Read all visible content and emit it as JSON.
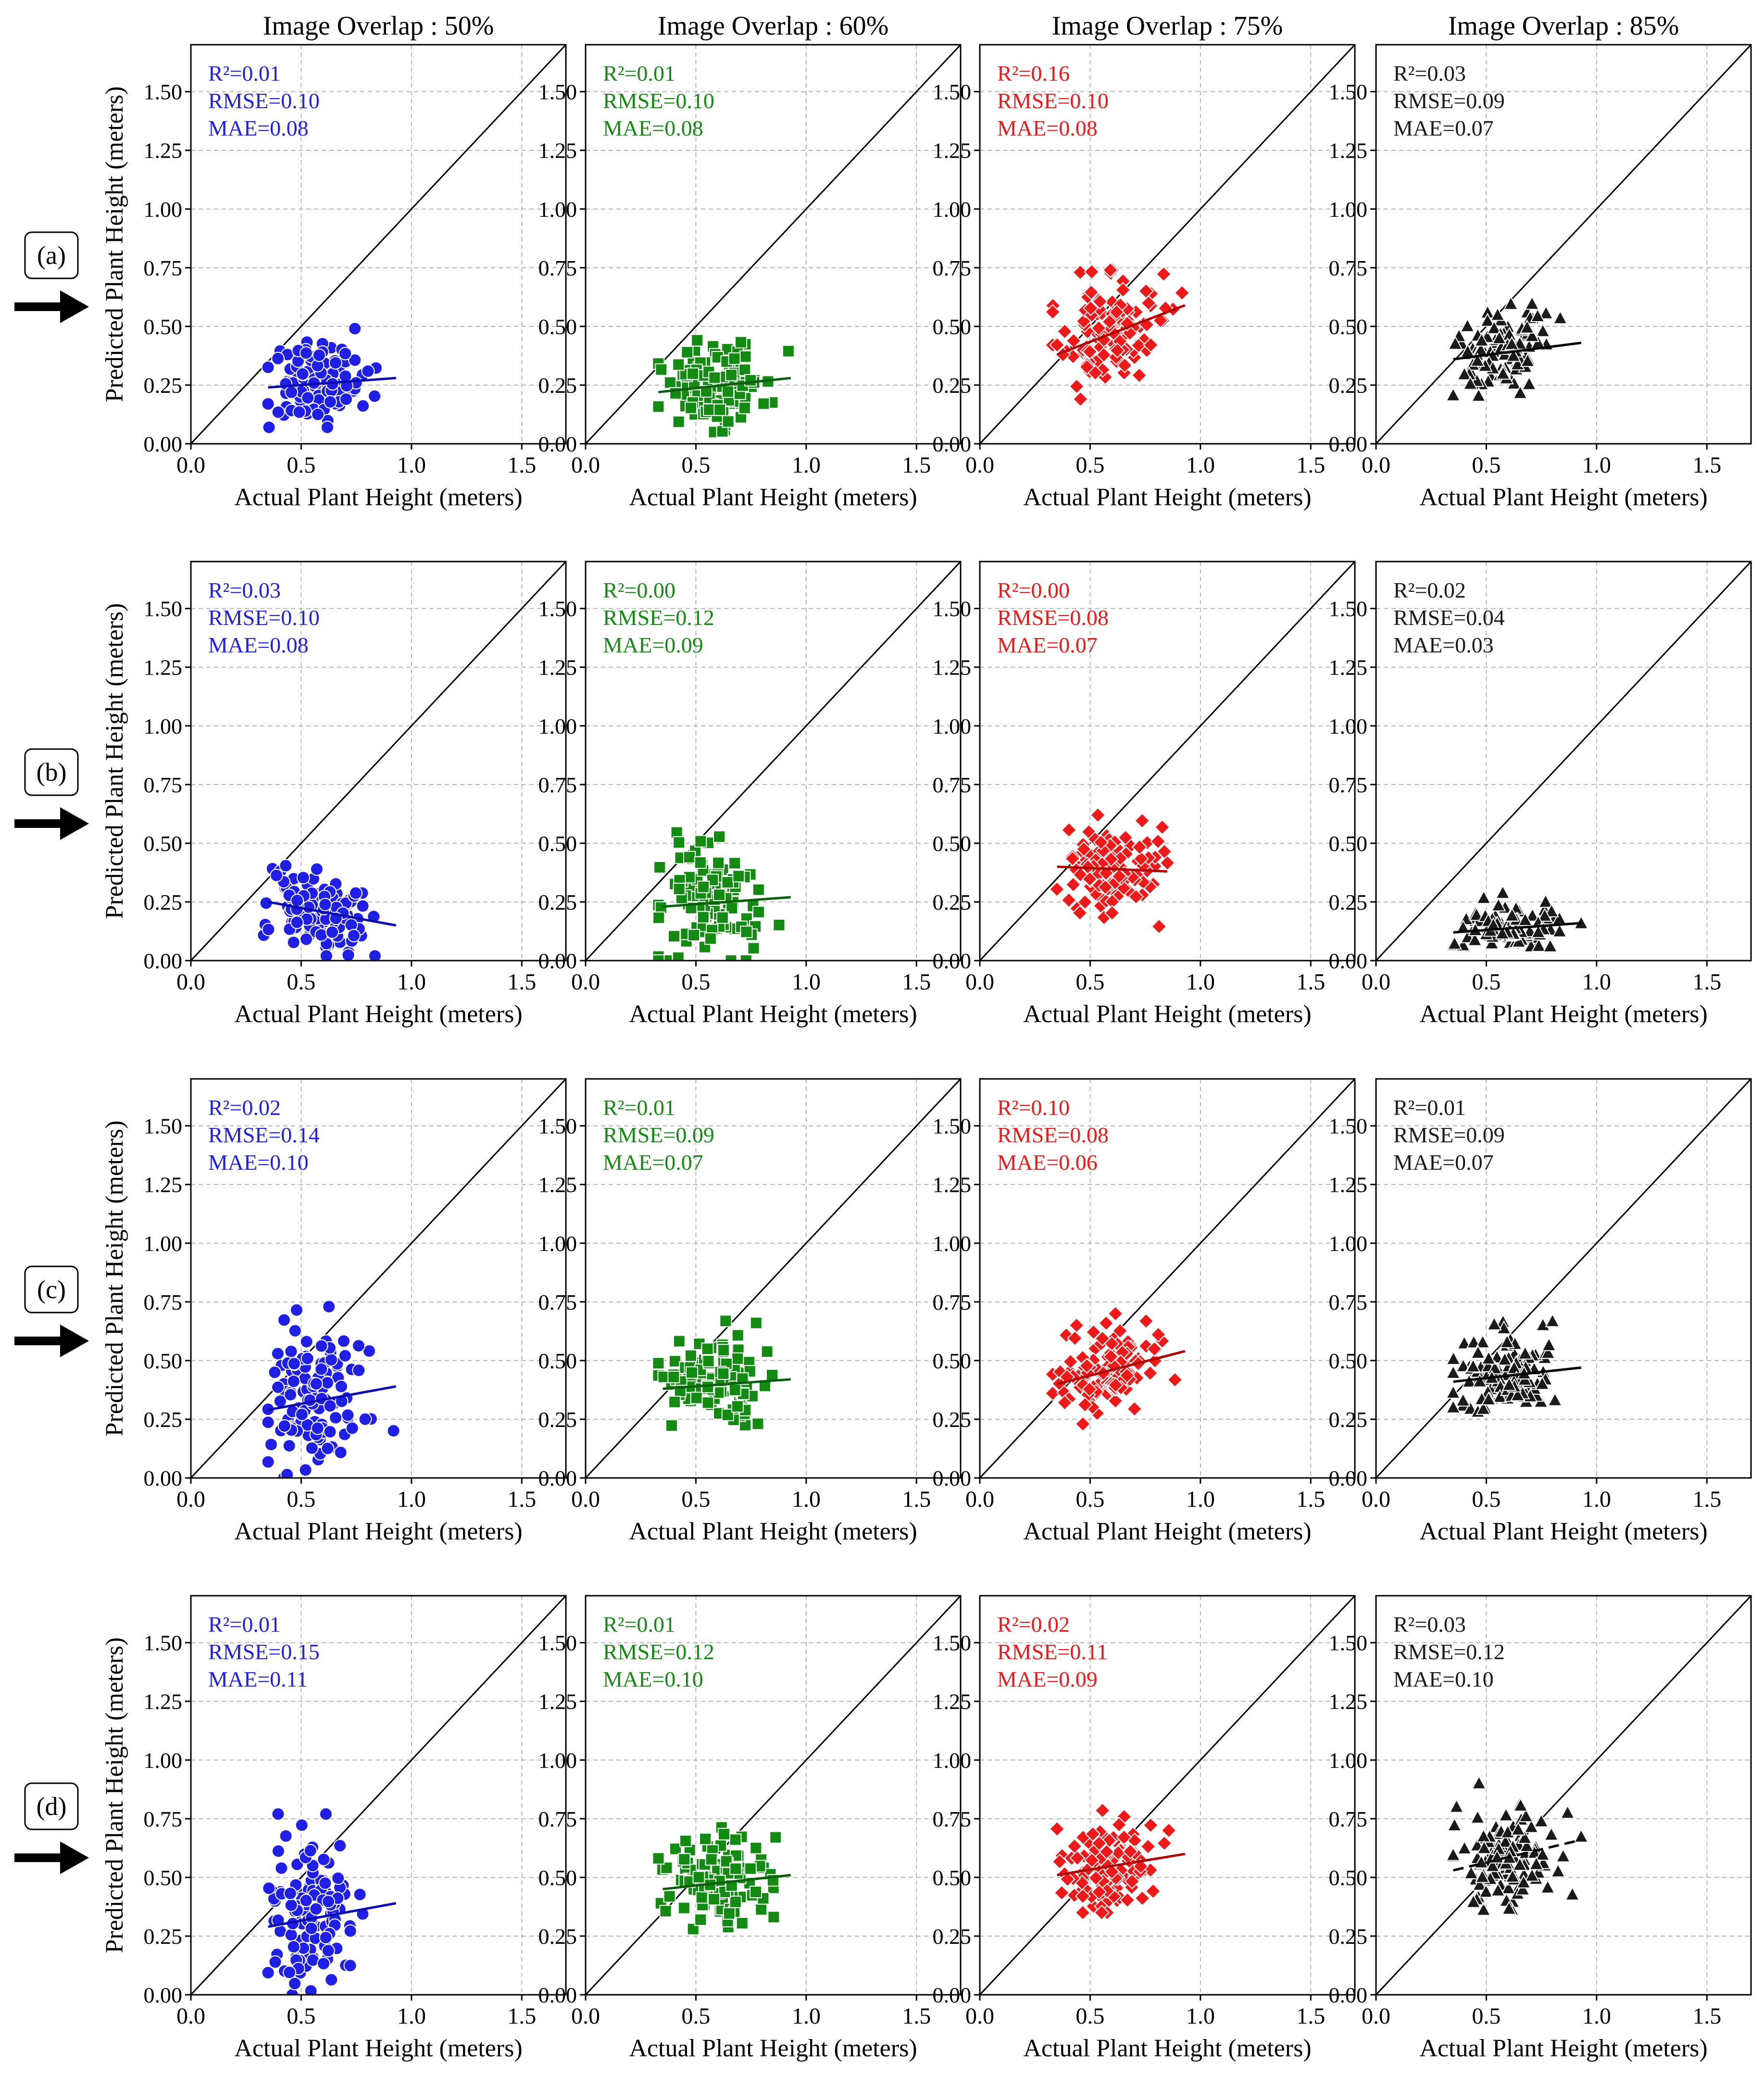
{
  "figure": {
    "row_labels": [
      "(a)",
      "(b)",
      "(c)",
      "(d)"
    ],
    "column_titles": [
      "Image Overlap : 50%",
      "Image Overlap : 60%",
      "Image Overlap : 75%",
      "Image Overlap : 85%"
    ],
    "xlabel": "Actual Plant Height (meters)",
    "ylabel": "Predicted Plant Height (meters)",
    "x_ticks": [
      "0.0",
      "0.5",
      "1.0",
      "1.5"
    ],
    "y_ticks": [
      "0.00",
      "0.25",
      "0.50",
      "0.75",
      "1.00",
      "1.25",
      "1.50"
    ],
    "xlim": [
      0,
      1.7
    ],
    "ylim": [
      0,
      1.7
    ],
    "reference_line": "y = x (1:1 line)",
    "grid": true,
    "column_colors": [
      "#1f1fe6",
      "#138b13",
      "#f01919",
      "#1a1a1a"
    ],
    "column_markers": [
      "circle",
      "square",
      "diamond",
      "triangle"
    ]
  },
  "chart_data": [
    {
      "type": "scatter",
      "row": "(a)",
      "title": "Image Overlap : 50%",
      "xlabel": "Actual Plant Height (meters)",
      "ylabel": "Predicted Plant Height (meters)",
      "xlim": [
        0,
        1.7
      ],
      "ylim": [
        0,
        1.7
      ],
      "stats": [
        "R²=0.01",
        "RMSE=0.10",
        "MAE=0.08"
      ],
      "cluster": {
        "x_range": [
          0.35,
          0.93
        ],
        "y_range": [
          0.07,
          0.52
        ],
        "x_center": 0.57,
        "y_center": 0.26
      },
      "fit_line": {
        "x": [
          0.35,
          0.93
        ],
        "y": [
          0.24,
          0.28
        ],
        "style": "solid"
      }
    },
    {
      "type": "scatter",
      "row": "(a)",
      "title": "Image Overlap : 60%",
      "xlabel": "Actual Plant Height (meters)",
      "ylabel": "Predicted Plant Height (meters)",
      "xlim": [
        0,
        1.7
      ],
      "ylim": [
        0,
        1.7
      ],
      "stats": [
        "R²=0.01",
        "RMSE=0.10",
        "MAE=0.08"
      ],
      "cluster": {
        "x_range": [
          0.33,
          0.93
        ],
        "y_range": [
          0.05,
          0.48
        ],
        "x_center": 0.58,
        "y_center": 0.25
      },
      "fit_line": {
        "x": [
          0.33,
          0.93
        ],
        "y": [
          0.22,
          0.28
        ],
        "style": "solid"
      }
    },
    {
      "type": "scatter",
      "row": "(a)",
      "title": "Image Overlap : 75%",
      "xlabel": "Actual Plant Height (meters)",
      "ylabel": "Predicted Plant Height (meters)",
      "xlim": [
        0,
        1.7
      ],
      "ylim": [
        0,
        1.7
      ],
      "stats": [
        "R²=0.16",
        "RMSE=0.10",
        "MAE=0.08"
      ],
      "cluster": {
        "x_range": [
          0.33,
          0.93
        ],
        "y_range": [
          0.17,
          0.74
        ],
        "x_center": 0.58,
        "y_center": 0.46
      },
      "fit_line": {
        "x": [
          0.35,
          0.93
        ],
        "y": [
          0.38,
          0.59
        ],
        "style": "solid"
      }
    },
    {
      "type": "scatter",
      "row": "(a)",
      "title": "Image Overlap : 85%",
      "xlabel": "Actual Plant Height (meters)",
      "ylabel": "Predicted Plant Height (meters)",
      "xlim": [
        0,
        1.7
      ],
      "ylim": [
        0,
        1.7
      ],
      "stats": [
        "R²=0.03",
        "RMSE=0.09",
        "MAE=0.07"
      ],
      "cluster": {
        "x_range": [
          0.35,
          0.93
        ],
        "y_range": [
          0.2,
          0.6
        ],
        "x_center": 0.58,
        "y_center": 0.4
      },
      "fit_line": {
        "x": [
          0.35,
          0.93
        ],
        "y": [
          0.36,
          0.43
        ],
        "style": "solid"
      }
    },
    {
      "type": "scatter",
      "row": "(b)",
      "title": "Image Overlap : 50%",
      "xlabel": "Actual Plant Height (meters)",
      "ylabel": "Predicted Plant Height (meters)",
      "xlim": [
        0,
        1.7
      ],
      "ylim": [
        0,
        1.7
      ],
      "stats": [
        "R²=0.03",
        "RMSE=0.10",
        "MAE=0.08"
      ],
      "cluster": {
        "x_range": [
          0.33,
          0.93
        ],
        "y_range": [
          0.02,
          0.46
        ],
        "x_center": 0.56,
        "y_center": 0.22
      },
      "fit_line": {
        "x": [
          0.35,
          0.93
        ],
        "y": [
          0.25,
          0.15
        ],
        "style": "solid"
      }
    },
    {
      "type": "scatter",
      "row": "(b)",
      "title": "Image Overlap : 60%",
      "xlabel": "Actual Plant Height (meters)",
      "ylabel": "Predicted Plant Height (meters)",
      "xlim": [
        0,
        1.7
      ],
      "ylim": [
        0,
        1.7
      ],
      "stats": [
        "R²=0.00",
        "RMSE=0.12",
        "MAE=0.09"
      ],
      "cluster": {
        "x_range": [
          0.33,
          0.95
        ],
        "y_range": [
          0.0,
          0.57
        ],
        "x_center": 0.58,
        "y_center": 0.26
      },
      "fit_line": {
        "x": [
          0.35,
          0.93
        ],
        "y": [
          0.23,
          0.27
        ],
        "style": "solid"
      }
    },
    {
      "type": "scatter",
      "row": "(b)",
      "title": "Image Overlap : 75%",
      "xlabel": "Actual Plant Height (meters)",
      "ylabel": "Predicted Plant Height (meters)",
      "xlim": [
        0,
        1.7
      ],
      "ylim": [
        0,
        1.7
      ],
      "stats": [
        "R²=0.00",
        "RMSE=0.08",
        "MAE=0.07"
      ],
      "cluster": {
        "x_range": [
          0.33,
          0.85
        ],
        "y_range": [
          0.13,
          0.62
        ],
        "x_center": 0.58,
        "y_center": 0.38
      },
      "fit_line": {
        "x": [
          0.35,
          0.85
        ],
        "y": [
          0.4,
          0.38
        ],
        "style": "solid"
      }
    },
    {
      "type": "scatter",
      "row": "(b)",
      "title": "Image Overlap : 85%",
      "xlabel": "Actual Plant Height (meters)",
      "ylabel": "Predicted Plant Height (meters)",
      "xlim": [
        0,
        1.7
      ],
      "ylim": [
        0,
        1.7
      ],
      "stats": [
        "R²=0.02",
        "RMSE=0.04",
        "MAE=0.03"
      ],
      "cluster": {
        "x_range": [
          0.35,
          0.93
        ],
        "y_range": [
          0.06,
          0.3
        ],
        "x_center": 0.6,
        "y_center": 0.14
      },
      "fit_line": {
        "x": [
          0.35,
          0.93
        ],
        "y": [
          0.12,
          0.16
        ],
        "style": "solid"
      }
    },
    {
      "type": "scatter",
      "row": "(c)",
      "title": "Image Overlap : 50%",
      "xlabel": "Actual Plant Height (meters)",
      "ylabel": "Predicted Plant Height (meters)",
      "xlim": [
        0,
        1.7
      ],
      "ylim": [
        0,
        1.7
      ],
      "stats": [
        "R²=0.02",
        "RMSE=0.14",
        "MAE=0.10"
      ],
      "cluster": {
        "x_range": [
          0.35,
          0.93
        ],
        "y_range": [
          0.0,
          0.73
        ],
        "x_center": 0.57,
        "y_center": 0.34
      },
      "fit_line": {
        "x": [
          0.35,
          0.93
        ],
        "y": [
          0.29,
          0.39
        ],
        "style": "solid"
      }
    },
    {
      "type": "scatter",
      "row": "(c)",
      "title": "Image Overlap : 60%",
      "xlabel": "Actual Plant Height (meters)",
      "ylabel": "Predicted Plant Height (meters)",
      "xlim": [
        0,
        1.7
      ],
      "ylim": [
        0,
        1.7
      ],
      "stats": [
        "R²=0.01",
        "RMSE=0.09",
        "MAE=0.07"
      ],
      "cluster": {
        "x_range": [
          0.33,
          0.93
        ],
        "y_range": [
          0.22,
          0.67
        ],
        "x_center": 0.58,
        "y_center": 0.41
      },
      "fit_line": {
        "x": [
          0.35,
          0.93
        ],
        "y": [
          0.38,
          0.42
        ],
        "style": "solid"
      }
    },
    {
      "type": "scatter",
      "row": "(c)",
      "title": "Image Overlap : 75%",
      "xlabel": "Actual Plant Height (meters)",
      "ylabel": "Predicted Plant Height (meters)",
      "xlim": [
        0,
        1.7
      ],
      "ylim": [
        0,
        1.7
      ],
      "stats": [
        "R²=0.10",
        "RMSE=0.08",
        "MAE=0.06"
      ],
      "cluster": {
        "x_range": [
          0.33,
          0.93
        ],
        "y_range": [
          0.23,
          0.7
        ],
        "x_center": 0.58,
        "y_center": 0.46
      },
      "fit_line": {
        "x": [
          0.35,
          0.93
        ],
        "y": [
          0.4,
          0.54
        ],
        "style": "solid"
      }
    },
    {
      "type": "scatter",
      "row": "(c)",
      "title": "Image Overlap : 85%",
      "xlabel": "Actual Plant Height (meters)",
      "ylabel": "Predicted Plant Height (meters)",
      "xlim": [
        0,
        1.7
      ],
      "ylim": [
        0,
        1.7
      ],
      "stats": [
        "R²=0.01",
        "RMSE=0.09",
        "MAE=0.07"
      ],
      "cluster": {
        "x_range": [
          0.35,
          0.93
        ],
        "y_range": [
          0.23,
          0.68
        ],
        "x_center": 0.58,
        "y_center": 0.44
      },
      "fit_line": {
        "x": [
          0.35,
          0.93
        ],
        "y": [
          0.41,
          0.47
        ],
        "style": "solid"
      }
    },
    {
      "type": "scatter",
      "row": "(d)",
      "title": "Image Overlap : 50%",
      "xlabel": "Actual Plant Height (meters)",
      "ylabel": "Predicted Plant Height (meters)",
      "xlim": [
        0,
        1.7
      ],
      "ylim": [
        0,
        1.7
      ],
      "stats": [
        "R²=0.01",
        "RMSE=0.15",
        "MAE=0.11"
      ],
      "cluster": {
        "x_range": [
          0.35,
          0.93
        ],
        "y_range": [
          0.0,
          0.77
        ],
        "x_center": 0.57,
        "y_center": 0.34
      },
      "fit_line": {
        "x": [
          0.35,
          0.93
        ],
        "y": [
          0.29,
          0.39
        ],
        "style": "solid"
      }
    },
    {
      "type": "scatter",
      "row": "(d)",
      "title": "Image Overlap : 60%",
      "xlabel": "Actual Plant Height (meters)",
      "ylabel": "Predicted Plant Height (meters)",
      "xlim": [
        0,
        1.7
      ],
      "ylim": [
        0,
        1.7
      ],
      "stats": [
        "R²=0.01",
        "RMSE=0.12",
        "MAE=0.10"
      ],
      "cluster": {
        "x_range": [
          0.33,
          0.93
        ],
        "y_range": [
          0.28,
          0.77
        ],
        "x_center": 0.58,
        "y_center": 0.48
      },
      "fit_line": {
        "x": [
          0.35,
          0.93
        ],
        "y": [
          0.45,
          0.51
        ],
        "style": "solid"
      }
    },
    {
      "type": "scatter",
      "row": "(d)",
      "title": "Image Overlap : 75%",
      "xlabel": "Actual Plant Height (meters)",
      "ylabel": "Predicted Plant Height (meters)",
      "xlim": [
        0,
        1.7
      ],
      "ylim": [
        0,
        1.7
      ],
      "stats": [
        "R²=0.02",
        "RMSE=0.11",
        "MAE=0.09"
      ],
      "cluster": {
        "x_range": [
          0.35,
          0.93
        ],
        "y_range": [
          0.35,
          0.8
        ],
        "x_center": 0.58,
        "y_center": 0.54
      },
      "fit_line": {
        "x": [
          0.35,
          0.93
        ],
        "y": [
          0.51,
          0.6
        ],
        "style": "solid"
      }
    },
    {
      "type": "scatter",
      "row": "(d)",
      "title": "Image Overlap : 85%",
      "xlabel": "Actual Plant Height (meters)",
      "ylabel": "Predicted Plant Height (meters)",
      "xlim": [
        0,
        1.7
      ],
      "ylim": [
        0,
        1.7
      ],
      "stats": [
        "R²=0.03",
        "RMSE=0.12",
        "MAE=0.10"
      ],
      "cluster": {
        "x_range": [
          0.35,
          0.93
        ],
        "y_range": [
          0.35,
          0.9
        ],
        "x_center": 0.6,
        "y_center": 0.58
      },
      "fit_line": {
        "x": [
          0.35,
          0.93
        ],
        "y": [
          0.53,
          0.66
        ],
        "style": "dashed"
      }
    }
  ]
}
